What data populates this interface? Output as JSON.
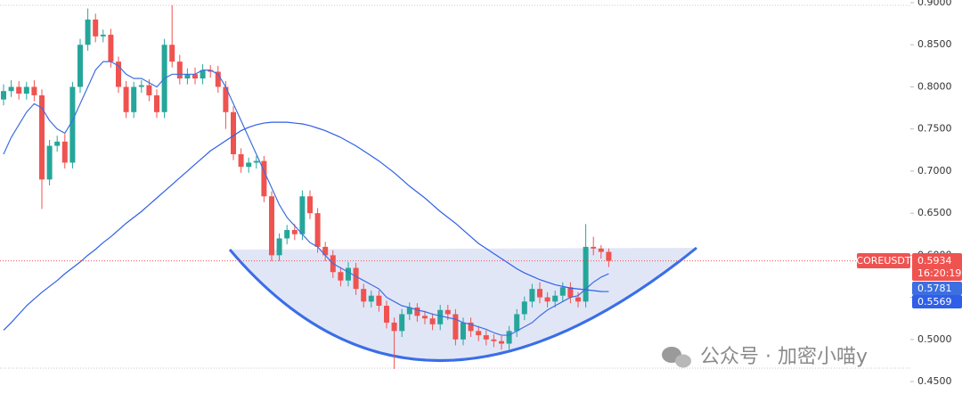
{
  "chart_data": {
    "type": "candlestick",
    "symbol": "COREUSDT",
    "countdown": "16:20:19",
    "watermark": "公众号 · 加密小喵y",
    "up_color": "#26a69a",
    "down_color": "#ef5350",
    "ylim": [
      0.4352,
      0.9032
    ],
    "yticks": [
      {
        "value": 0.9,
        "label": "0.9000"
      },
      {
        "value": 0.85,
        "label": "0.8500"
      },
      {
        "value": 0.8,
        "label": "0.8000"
      },
      {
        "value": 0.75,
        "label": "0.7500"
      },
      {
        "value": 0.7,
        "label": "0.7000"
      },
      {
        "value": 0.65,
        "label": "0.6500"
      },
      {
        "value": 0.6,
        "label": "0.6000"
      },
      {
        "value": 0.55,
        "label": "0.5500"
      },
      {
        "value": 0.5,
        "label": "0.5000"
      },
      {
        "value": 0.45,
        "label": "0.4500"
      }
    ],
    "open": [
      0.785,
      0.795,
      0.8,
      0.792,
      0.8,
      0.79,
      0.69,
      0.73,
      0.735,
      0.71,
      0.8,
      0.85,
      0.88,
      0.86,
      0.862,
      0.83,
      0.8,
      0.77,
      0.8,
      0.802,
      0.79,
      0.77,
      0.85,
      0.83,
      0.81,
      0.815,
      0.81,
      0.82,
      0.818,
      0.8,
      0.77,
      0.72,
      0.705,
      0.71,
      0.712,
      0.67,
      0.6,
      0.62,
      0.63,
      0.625,
      0.67,
      0.65,
      0.61,
      0.6,
      0.58,
      0.57,
      0.585,
      0.56,
      0.545,
      0.552,
      0.54,
      0.52,
      0.51,
      0.53,
      0.538,
      0.528,
      0.525,
      0.518,
      0.535,
      0.53,
      0.5,
      0.52,
      0.51,
      0.505,
      0.5,
      0.498,
      0.495,
      0.51,
      0.53,
      0.545,
      0.56,
      0.55,
      0.545,
      0.552,
      0.562,
      0.55,
      0.545,
      0.61,
      0.608,
      0.604
    ],
    "high": [
      0.803,
      0.808,
      0.807,
      0.806,
      0.808,
      0.797,
      0.737,
      0.742,
      0.744,
      0.806,
      0.857,
      0.893,
      0.887,
      0.868,
      0.869,
      0.836,
      0.807,
      0.806,
      0.808,
      0.809,
      0.797,
      0.857,
      0.897,
      0.838,
      0.822,
      0.823,
      0.827,
      0.826,
      0.825,
      0.807,
      0.777,
      0.727,
      0.716,
      0.718,
      0.718,
      0.676,
      0.626,
      0.636,
      0.637,
      0.677,
      0.677,
      0.656,
      0.616,
      0.606,
      0.586,
      0.592,
      0.591,
      0.566,
      0.558,
      0.558,
      0.546,
      0.526,
      0.536,
      0.544,
      0.543,
      0.534,
      0.531,
      0.541,
      0.541,
      0.536,
      0.526,
      0.526,
      0.516,
      0.511,
      0.506,
      0.504,
      0.516,
      0.536,
      0.551,
      0.566,
      0.568,
      0.556,
      0.558,
      0.568,
      0.568,
      0.556,
      0.637,
      0.622,
      0.612,
      0.608
    ],
    "low": [
      0.778,
      0.788,
      0.785,
      0.785,
      0.783,
      0.655,
      0.683,
      0.723,
      0.703,
      0.703,
      0.793,
      0.843,
      0.853,
      0.853,
      0.823,
      0.793,
      0.763,
      0.763,
      0.793,
      0.783,
      0.763,
      0.763,
      0.823,
      0.803,
      0.803,
      0.803,
      0.803,
      0.811,
      0.793,
      0.75,
      0.713,
      0.698,
      0.698,
      0.703,
      0.663,
      0.593,
      0.593,
      0.613,
      0.618,
      0.618,
      0.643,
      0.603,
      0.593,
      0.573,
      0.563,
      0.563,
      0.553,
      0.538,
      0.538,
      0.533,
      0.513,
      0.465,
      0.503,
      0.523,
      0.521,
      0.518,
      0.511,
      0.511,
      0.523,
      0.493,
      0.493,
      0.503,
      0.498,
      0.493,
      0.491,
      0.488,
      0.488,
      0.503,
      0.523,
      0.538,
      0.543,
      0.538,
      0.538,
      0.545,
      0.543,
      0.538,
      0.538,
      0.6,
      0.596,
      0.586
    ],
    "close": [
      0.795,
      0.8,
      0.792,
      0.8,
      0.79,
      0.69,
      0.73,
      0.735,
      0.71,
      0.8,
      0.85,
      0.88,
      0.86,
      0.862,
      0.83,
      0.8,
      0.77,
      0.8,
      0.802,
      0.79,
      0.77,
      0.85,
      0.83,
      0.81,
      0.815,
      0.81,
      0.82,
      0.818,
      0.8,
      0.77,
      0.72,
      0.705,
      0.71,
      0.712,
      0.67,
      0.6,
      0.62,
      0.63,
      0.625,
      0.67,
      0.65,
      0.61,
      0.6,
      0.58,
      0.57,
      0.585,
      0.56,
      0.545,
      0.552,
      0.54,
      0.52,
      0.51,
      0.53,
      0.538,
      0.528,
      0.525,
      0.518,
      0.535,
      0.53,
      0.5,
      0.52,
      0.51,
      0.505,
      0.5,
      0.498,
      0.495,
      0.51,
      0.53,
      0.545,
      0.56,
      0.55,
      0.545,
      0.552,
      0.562,
      0.55,
      0.545,
      0.61,
      0.608,
      0.604,
      0.5934
    ],
    "moving_averages": [
      {
        "color": "#3d6fe0",
        "values": [
          0.72,
          0.74,
          0.755,
          0.77,
          0.78,
          0.775,
          0.76,
          0.75,
          0.745,
          0.76,
          0.78,
          0.8,
          0.82,
          0.83,
          0.83,
          0.825,
          0.815,
          0.81,
          0.81,
          0.805,
          0.8,
          0.81,
          0.815,
          0.815,
          0.815,
          0.815,
          0.82,
          0.82,
          0.815,
          0.8,
          0.78,
          0.76,
          0.74,
          0.72,
          0.7,
          0.68,
          0.66,
          0.645,
          0.635,
          0.625,
          0.615,
          0.61,
          0.6,
          0.59,
          0.585,
          0.58,
          0.575,
          0.57,
          0.565,
          0.56,
          0.55,
          0.545,
          0.54,
          0.538,
          0.535,
          0.533,
          0.53,
          0.528,
          0.526,
          0.524,
          0.52,
          0.518,
          0.515,
          0.512,
          0.508,
          0.505,
          0.505,
          0.51,
          0.515,
          0.52,
          0.528,
          0.535,
          0.54,
          0.545,
          0.55,
          0.552,
          0.56,
          0.568,
          0.574,
          0.5781
        ]
      },
      {
        "color": "#2f5fe8",
        "values": [
          0.511,
          0.52,
          0.53,
          0.54,
          0.548,
          0.556,
          0.563,
          0.57,
          0.578,
          0.585,
          0.592,
          0.6,
          0.607,
          0.615,
          0.622,
          0.63,
          0.638,
          0.645,
          0.652,
          0.66,
          0.668,
          0.676,
          0.684,
          0.692,
          0.7,
          0.708,
          0.716,
          0.724,
          0.73,
          0.736,
          0.742,
          0.748,
          0.752,
          0.755,
          0.757,
          0.758,
          0.758,
          0.758,
          0.757,
          0.756,
          0.754,
          0.751,
          0.748,
          0.744,
          0.74,
          0.735,
          0.73,
          0.724,
          0.718,
          0.712,
          0.705,
          0.698,
          0.69,
          0.682,
          0.675,
          0.668,
          0.66,
          0.652,
          0.645,
          0.638,
          0.63,
          0.622,
          0.614,
          0.608,
          0.602,
          0.596,
          0.59,
          0.584,
          0.579,
          0.575,
          0.571,
          0.568,
          0.565,
          0.563,
          0.561,
          0.56,
          0.559,
          0.558,
          0.557,
          0.5569
        ]
      }
    ]
  }
}
